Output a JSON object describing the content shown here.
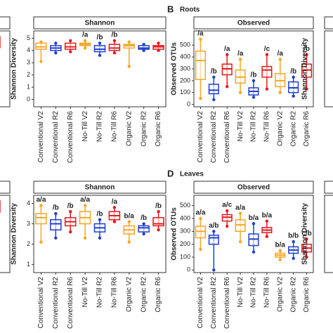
{
  "chart_data": [
    {
      "type": "box",
      "categories": [
        "Organic R6"
      ]
    },
    {
      "type": "box",
      "strip": "Shannon",
      "y_label": "Shannon Diversity",
      "categories": [
        "Conventional V2",
        "Conventional R2",
        "Conventional R6",
        "No-Till V2",
        "No-Till R2",
        "No-Till R6",
        "Organic V2",
        "Organic R2",
        "Organic R6"
      ],
      "colors": [
        "#f5a623",
        "#1f3fd0",
        "#e41a1c",
        "#f5a623",
        "#1f3fd0",
        "#e41a1c",
        "#f5a623",
        "#1f3fd0",
        "#e41a1c"
      ],
      "ylim": [
        -0.6,
        5.6
      ],
      "yticks": [
        0,
        1,
        2,
        3,
        4,
        5
      ],
      "boxes": [
        {
          "low": 3.1,
          "q1": 4.1,
          "median": 4.3,
          "q3": 4.6,
          "high": 4.7
        },
        {
          "low": 3.8,
          "q1": 4.0,
          "median": 4.2,
          "q3": 4.4,
          "high": 4.6
        },
        {
          "low": 3.9,
          "q1": 4.1,
          "median": 4.3,
          "q3": 4.6,
          "high": 4.8
        },
        {
          "low": 4.2,
          "q1": 4.4,
          "median": 4.5,
          "q3": 4.6,
          "high": 4.8
        },
        {
          "low": 3.6,
          "q1": 3.9,
          "median": 4.1,
          "q3": 4.4,
          "high": 4.6
        },
        {
          "low": 3.8,
          "q1": 4.0,
          "median": 4.2,
          "q3": 4.5,
          "high": 4.8
        },
        {
          "low": 2.7,
          "q1": 4.2,
          "median": 4.4,
          "q3": 4.5,
          "high": 4.7
        },
        {
          "low": 4.0,
          "q1": 4.1,
          "median": 4.2,
          "q3": 4.4,
          "high": 4.5
        },
        {
          "low": 4.0,
          "q1": 4.1,
          "median": 4.3,
          "q3": 4.4,
          "high": 4.6
        }
      ],
      "annotations": [
        null,
        null,
        null,
        "/a",
        "/b",
        "/b",
        null,
        null,
        null
      ]
    },
    {
      "type": "box",
      "panel": "B",
      "title": "Roots",
      "strip": "Observed",
      "y_label": "Observed OTUs",
      "categories": [
        "Conventional V2",
        "Conventional R2",
        "Conventional R6",
        "No-Till V2",
        "No-Till R2",
        "No-Till R6",
        "Organic V2",
        "Organic R2",
        "Organic R6"
      ],
      "colors": [
        "#f5a623",
        "#1f3fd0",
        "#e41a1c",
        "#f5a623",
        "#1f3fd0",
        "#e41a1c",
        "#f5a623",
        "#1f3fd0",
        "#e41a1c"
      ],
      "ylim": [
        -20,
        620
      ],
      "yticks": [
        0,
        100,
        200,
        300,
        400,
        500
      ],
      "boxes": [
        {
          "low": 50,
          "q1": 210,
          "median": 370,
          "q3": 450,
          "high": 550
        },
        {
          "low": 40,
          "q1": 90,
          "median": 120,
          "q3": 170,
          "high": 230
        },
        {
          "low": 150,
          "q1": 250,
          "median": 300,
          "q3": 340,
          "high": 420
        },
        {
          "low": 100,
          "q1": 180,
          "median": 230,
          "q3": 290,
          "high": 380
        },
        {
          "low": 60,
          "q1": 80,
          "median": 110,
          "q3": 140,
          "high": 200
        },
        {
          "low": 130,
          "q1": 230,
          "median": 290,
          "q3": 320,
          "high": 420
        },
        {
          "low": 100,
          "q1": 150,
          "median": 200,
          "q3": 260,
          "high": 380
        },
        {
          "low": 70,
          "q1": 100,
          "median": 140,
          "q3": 190,
          "high": 230
        },
        {
          "low": 130,
          "q1": 230,
          "median": 290,
          "q3": 340,
          "high": 420
        }
      ],
      "annotations": [
        "/a",
        "/b",
        "/a",
        "/a",
        "/b",
        "/c",
        "/a",
        "/b",
        "/b"
      ]
    },
    {
      "type": "box",
      "y_label": "Shannon Diversity"
    },
    {
      "type": "box",
      "categories": [
        "Organic R6"
      ]
    },
    {
      "type": "box",
      "strip": "Shannon",
      "y_label": "Shannon Diversity",
      "categories": [
        "Conventional V2",
        "Conventional R2",
        "Conventional R6",
        "No-Till V2",
        "No-Till R2",
        "No-Till R6",
        "Organic V2",
        "Organic R2",
        "Organic R6"
      ],
      "colors": [
        "#f5a623",
        "#1f3fd0",
        "#e41a1c",
        "#f5a623",
        "#1f3fd0",
        "#e41a1c",
        "#f5a623",
        "#1f3fd0",
        "#e41a1c"
      ],
      "ylim": [
        0.6,
        4.4
      ],
      "yticks": [
        1,
        2,
        3,
        4
      ],
      "boxes": [
        {
          "low": 2.1,
          "q1": 3.0,
          "median": 3.3,
          "q3": 3.5,
          "high": 3.9
        },
        {
          "low": 2.3,
          "q1": 2.7,
          "median": 3.0,
          "q3": 3.2,
          "high": 3.5
        },
        {
          "low": 2.6,
          "q1": 2.9,
          "median": 3.1,
          "q3": 3.3,
          "high": 3.6
        },
        {
          "low": 2.3,
          "q1": 3.0,
          "median": 3.3,
          "q3": 3.6,
          "high": 3.9
        },
        {
          "low": 2.3,
          "q1": 2.6,
          "median": 2.8,
          "q3": 3.0,
          "high": 3.2
        },
        {
          "low": 3.1,
          "q1": 3.2,
          "median": 3.4,
          "q3": 3.6,
          "high": 3.8
        },
        {
          "low": 2.1,
          "q1": 2.5,
          "median": 2.7,
          "q3": 2.9,
          "high": 3.1
        },
        {
          "low": 2.5,
          "q1": 2.6,
          "median": 2.8,
          "q3": 2.9,
          "high": 3.0
        },
        {
          "low": 2.7,
          "q1": 2.9,
          "median": 3.0,
          "q3": 3.3,
          "high": 3.6
        }
      ],
      "annotations": [
        "a/a",
        "/b",
        "/b",
        "a/a",
        "/b",
        "/a",
        "b/a",
        "/b",
        "/b"
      ]
    },
    {
      "type": "box",
      "panel": "D",
      "title": "Leaves",
      "strip": "Observed",
      "y_label": "Observed OTUs",
      "categories": [
        "Conventional V2",
        "Conventional R2",
        "Conventional R6",
        "No-Till V2",
        "No-Till R2",
        "No-Till R6",
        "Organic V2",
        "Organic R2",
        "Organic R6"
      ],
      "colors": [
        "#f5a623",
        "#1f3fd0",
        "#e41a1c",
        "#f5a623",
        "#1f3fd0",
        "#e41a1c",
        "#f5a623",
        "#1f3fd0",
        "#e41a1c"
      ],
      "ylim": [
        -20,
        580
      ],
      "yticks": [
        0,
        100,
        200,
        300,
        400,
        500
      ],
      "boxes": [
        {
          "low": 160,
          "q1": 250,
          "median": 300,
          "q3": 340,
          "high": 400
        },
        {
          "low": 0,
          "q1": 200,
          "median": 250,
          "q3": 270,
          "high": 300
        },
        {
          "low": 340,
          "q1": 380,
          "median": 410,
          "q3": 430,
          "high": 460
        },
        {
          "low": 220,
          "q1": 300,
          "median": 350,
          "q3": 390,
          "high": 440
        },
        {
          "low": 140,
          "q1": 190,
          "median": 240,
          "q3": 280,
          "high": 360
        },
        {
          "low": 260,
          "q1": 290,
          "median": 310,
          "q3": 330,
          "high": 380
        },
        {
          "low": 80,
          "q1": 100,
          "median": 115,
          "q3": 130,
          "high": 150
        },
        {
          "low": 90,
          "q1": 130,
          "median": 155,
          "q3": 180,
          "high": 220
        },
        {
          "low": 100,
          "q1": 140,
          "median": 170,
          "q3": 200,
          "high": 240
        }
      ],
      "annotations": [
        "a/a",
        "a/b",
        "a/c",
        "a/a",
        "b/a",
        "b/a",
        "b/a",
        "b/b",
        "c/b"
      ]
    },
    {
      "type": "box",
      "y_label": "Shannon Diversity"
    }
  ]
}
